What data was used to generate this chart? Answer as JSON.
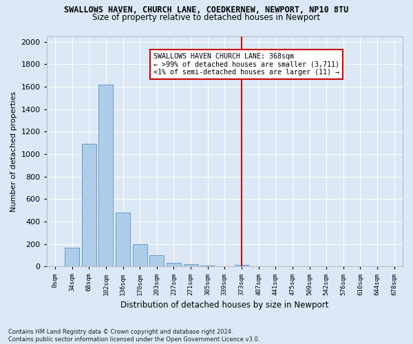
{
  "title_line1": "SWALLOWS HAVEN, CHURCH LANE, COEDKERNEW, NEWPORT, NP10 8TU",
  "title_line2": "Size of property relative to detached houses in Newport",
  "xlabel": "Distribution of detached houses by size in Newport",
  "ylabel": "Number of detached properties",
  "footnote": "Contains HM Land Registry data © Crown copyright and database right 2024.\nContains public sector information licensed under the Open Government Licence v3.0.",
  "bar_labels": [
    "0sqm",
    "34sqm",
    "68sqm",
    "102sqm",
    "136sqm",
    "170sqm",
    "203sqm",
    "237sqm",
    "271sqm",
    "305sqm",
    "339sqm",
    "373sqm",
    "407sqm",
    "441sqm",
    "475sqm",
    "509sqm",
    "542sqm",
    "576sqm",
    "610sqm",
    "644sqm",
    "678sqm"
  ],
  "bar_values": [
    0,
    165,
    1090,
    1620,
    480,
    200,
    100,
    35,
    20,
    10,
    5,
    15,
    0,
    0,
    0,
    0,
    0,
    0,
    0,
    0,
    0
  ],
  "bar_color": "#aecde8",
  "bar_edge_color": "#6699cc",
  "vline_color": "#cc0000",
  "annotation_text": "SWALLOWS HAVEN CHURCH LANE: 368sqm\n← >99% of detached houses are smaller (3,711)\n<1% of semi-detached houses are larger (11) →",
  "annotation_box_color": "#ffffff",
  "annotation_box_edge": "#cc0000",
  "ylim": [
    0,
    2050
  ],
  "yticks": [
    0,
    200,
    400,
    600,
    800,
    1000,
    1200,
    1400,
    1600,
    1800,
    2000
  ],
  "bg_color": "#dce8f5",
  "grid_color": "#ffffff",
  "vline_index": 11
}
